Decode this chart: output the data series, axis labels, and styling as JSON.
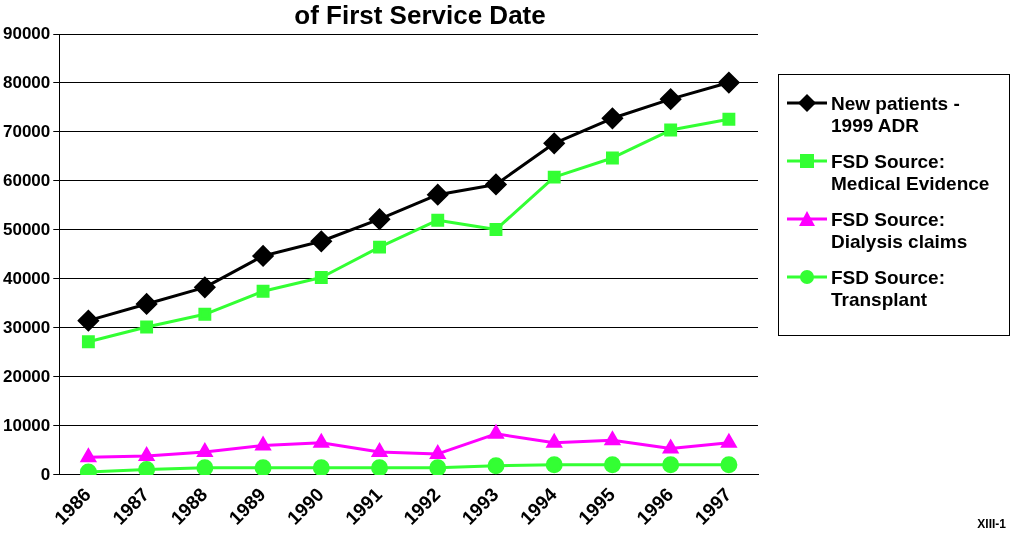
{
  "chart_data": {
    "type": "line",
    "title": "of First Service Date",
    "categories": [
      "1986",
      "1987",
      "1988",
      "1989",
      "1990",
      "1991",
      "1992",
      "1993",
      "1994",
      "1995",
      "1996",
      "1997"
    ],
    "series": [
      {
        "name": "New patients - 1999 ADR",
        "color": "#000000",
        "marker": "diamond",
        "values": [
          31500,
          34900,
          38300,
          44700,
          47700,
          52200,
          57200,
          59300,
          67700,
          72800,
          76700,
          80100
        ]
      },
      {
        "name": "FSD Source: Medical Evidence",
        "color": "#33ff33",
        "marker": "square",
        "values": [
          27200,
          30200,
          32800,
          37500,
          40300,
          46500,
          52000,
          50100,
          60800,
          64700,
          70400,
          72600
        ]
      },
      {
        "name": "FSD Source: Dialysis claims",
        "color": "#ff00ff",
        "marker": "triangle",
        "values": [
          3600,
          3900,
          4700,
          6000,
          6600,
          4700,
          4300,
          8400,
          6600,
          7100,
          5400,
          6600
        ]
      },
      {
        "name": "FSD Source: Transplant",
        "color": "#33ff33",
        "marker": "circle",
        "values": [
          600,
          1100,
          1500,
          1500,
          1500,
          1500,
          1500,
          1900,
          2100,
          2100,
          2100,
          2100
        ]
      }
    ],
    "ylim": [
      0,
      90000
    ],
    "yticks": [
      0,
      10000,
      20000,
      30000,
      40000,
      50000,
      60000,
      70000,
      80000,
      90000
    ],
    "grid": "y",
    "legend": "right",
    "annotations": [
      "XIII-1"
    ]
  }
}
